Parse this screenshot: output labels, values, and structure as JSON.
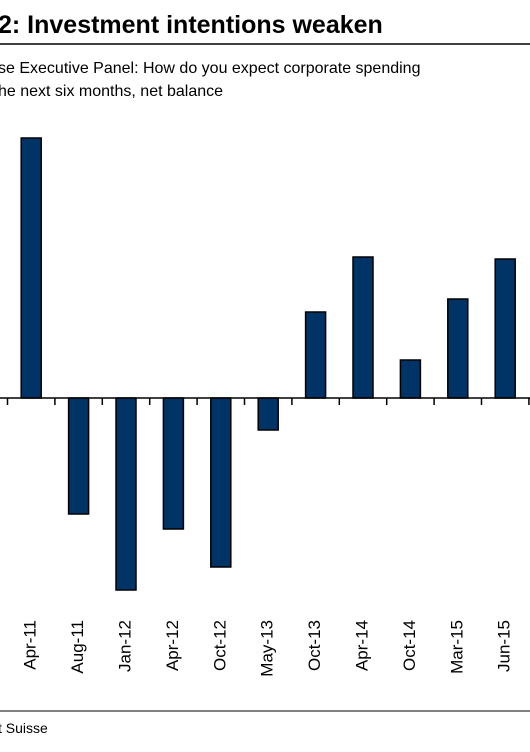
{
  "chart_data": {
    "type": "bar",
    "title": "2: Investment intentions weaken",
    "subtitle": [
      "se Executive Panel: How do you expect corporate spending",
      "he next six months, net balance"
    ],
    "source": "t Suisse",
    "categories": [
      "Apr-11",
      "Aug-11",
      "Jan-12",
      "Apr-12",
      "Oct-12",
      "May-13",
      "Oct-13",
      "Apr-14",
      "Oct-14",
      "Mar-15",
      "Jun-15"
    ],
    "values": [
      26,
      -11.6,
      -19.2,
      -13.1,
      -16.9,
      -3.2,
      8.6,
      14.1,
      3.8,
      9.9,
      13.9
    ],
    "color": "#003366",
    "ylim": [
      -21,
      29
    ]
  }
}
